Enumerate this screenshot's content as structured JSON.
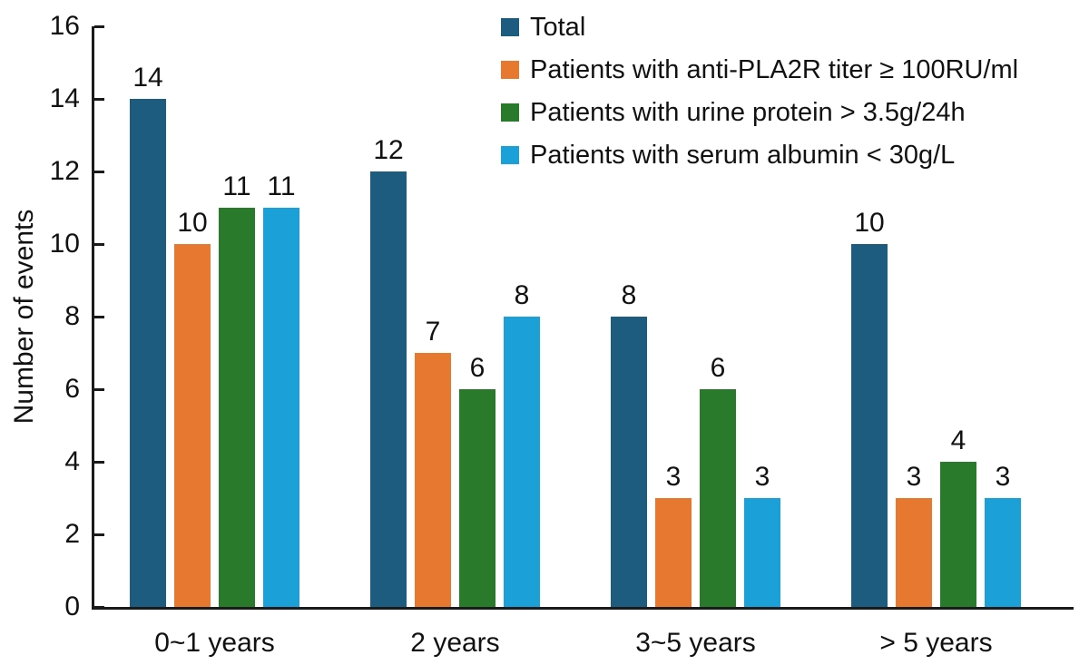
{
  "chart_data": {
    "type": "bar",
    "title": "",
    "xlabel": "",
    "ylabel": "Number of events",
    "ylim": [
      0,
      16
    ],
    "yticks": [
      0,
      2,
      4,
      6,
      8,
      10,
      12,
      14,
      16
    ],
    "grid": false,
    "legend_position": "top-right",
    "bar_value_labels_shown": true,
    "axis_color": "#1a1a1a",
    "text_color": "#111111",
    "categories": [
      "0~1 years",
      "2 years",
      "3~5 years",
      "> 5 years"
    ],
    "series": [
      {
        "name": "Total",
        "color": "#1d5c7e",
        "values": [
          14,
          12,
          8,
          10
        ]
      },
      {
        "name": "Patients with anti-PLA2R titer ≥ 100RU/ml",
        "color": "#e6792f",
        "values": [
          10,
          7,
          3,
          3
        ]
      },
      {
        "name": "Patients with urine protein > 3.5g/24h",
        "color": "#2a7a2b",
        "values": [
          11,
          6,
          6,
          4
        ]
      },
      {
        "name": "Patients with serum albumin < 30g/L",
        "color": "#1ba0d8",
        "values": [
          11,
          8,
          3,
          3
        ]
      }
    ]
  }
}
